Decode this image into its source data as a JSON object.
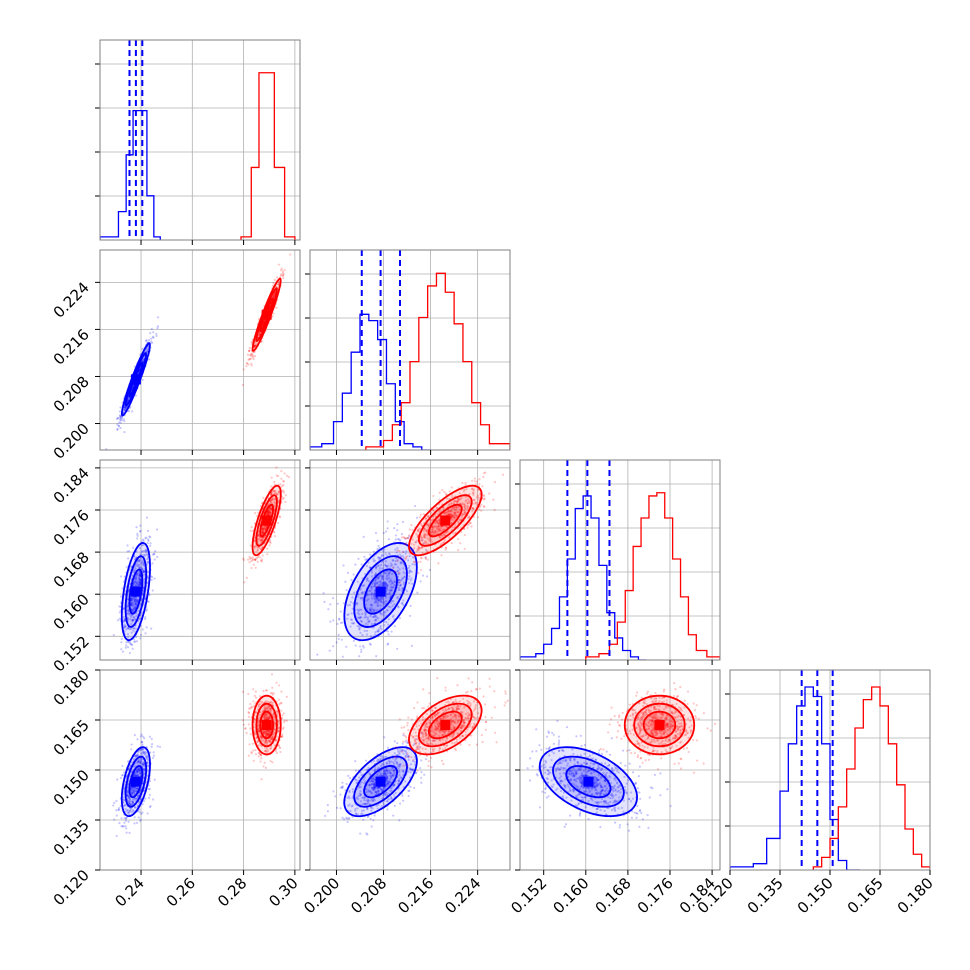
{
  "chart_data": {
    "type": "corner",
    "grid": true,
    "colors": {
      "blue": "#0000ff",
      "red": "#ff0000",
      "frame": "#808080",
      "grid": "#b0b0b0"
    },
    "parameters": [
      {
        "range": [
          0.224,
          0.302
        ],
        "ticks": [
          0.24,
          0.26,
          0.28,
          0.3
        ],
        "tick_labels": [
          "0.24",
          "0.26",
          "0.28",
          "0.30"
        ]
      },
      {
        "range": [
          0.1955,
          0.2295
        ],
        "ticks": [
          0.2,
          0.208,
          0.216,
          0.224
        ],
        "tick_labels": [
          "0.200",
          "0.208",
          "0.216",
          "0.224"
        ]
      },
      {
        "range": [
          0.1475,
          0.1855
        ],
        "ticks": [
          0.152,
          0.16,
          0.168,
          0.176,
          0.184
        ],
        "tick_labels": [
          "0.152",
          "0.160",
          "0.168",
          "0.176",
          "0.184"
        ]
      },
      {
        "range": [
          0.12,
          0.18
        ],
        "ticks": [
          0.12,
          0.135,
          0.15,
          0.165,
          0.18
        ],
        "tick_labels": [
          "0.120",
          "0.135",
          "0.150",
          "0.165",
          "0.180"
        ]
      }
    ],
    "series": [
      {
        "color": "#0000ff",
        "mean": [
          0.238,
          0.2075,
          0.1605,
          0.1465
        ],
        "sd": [
          0.0025,
          0.0028,
          0.0042,
          0.0047
        ],
        "corr": [
          [
            1,
            0.95,
            0.5,
            0.5
          ],
          [
            0.95,
            1,
            0.5,
            0.6
          ],
          [
            0.5,
            0.5,
            1,
            -0.45
          ],
          [
            0.5,
            0.6,
            -0.45,
            1
          ]
        ],
        "quantile_lines": [
          [
            0.2355,
            0.238,
            0.2405
          ],
          [
            0.2043,
            0.2075,
            0.2108
          ],
          [
            0.1565,
            0.1603,
            0.1645
          ],
          [
            0.1415,
            0.1462,
            0.1508
          ]
        ],
        "hist_bins": [
          [
            0.224,
            0.2312,
            0.2342,
            0.2369,
            0.2396,
            0.2423,
            0.245,
            0.2475
          ],
          [
            0.1955,
            0.1975,
            0.1995,
            0.201,
            0.2025,
            0.204,
            0.2055,
            0.207,
            0.2085,
            0.21,
            0.2115,
            0.213,
            0.2145,
            0.216
          ],
          [
            0.1475,
            0.1505,
            0.152,
            0.1535,
            0.155,
            0.1565,
            0.158,
            0.1595,
            0.161,
            0.1625,
            0.164,
            0.1655,
            0.167,
            0.1685,
            0.17,
            0.1715
          ],
          [
            0.12,
            0.127,
            0.131,
            0.135,
            0.1375,
            0.14,
            0.1425,
            0.145,
            0.1475,
            0.15,
            0.1525,
            0.155,
            0.159
          ]
        ],
        "hist_counts": [
          [
            1,
            9,
            27,
            41,
            41,
            14,
            1
          ],
          [
            1,
            2,
            9,
            18,
            31,
            43,
            41,
            35,
            21,
            9,
            2,
            1,
            0
          ],
          [
            1,
            2,
            5,
            10,
            20,
            32,
            48,
            52,
            45,
            30,
            15,
            7,
            3,
            1,
            0
          ],
          [
            1,
            2,
            10,
            25,
            40,
            52,
            58,
            55,
            40,
            16,
            3,
            0
          ]
        ]
      },
      {
        "color": "#ff0000",
        "mean": [
          0.289,
          0.2185,
          0.174,
          0.1635
        ],
        "sd": [
          0.0025,
          0.0028,
          0.003,
          0.004
        ],
        "corr": [
          [
            1,
            0.95,
            0.75,
            0
          ],
          [
            0.95,
            1,
            0.75,
            0.5
          ],
          [
            0.75,
            0.75,
            1,
            0
          ],
          [
            0,
            0.5,
            0,
            1
          ]
        ],
        "hist_bins": [
          [
            0.279,
            0.283,
            0.286,
            0.289,
            0.292,
            0.296,
            0.3
          ],
          [
            0.205,
            0.208,
            0.2095,
            0.211,
            0.2125,
            0.214,
            0.2155,
            0.217,
            0.2185,
            0.22,
            0.2215,
            0.223,
            0.2245,
            0.226,
            0.2295
          ],
          [
            0.16,
            0.1625,
            0.1645,
            0.166,
            0.1675,
            0.169,
            0.1705,
            0.172,
            0.1735,
            0.175,
            0.1765,
            0.178,
            0.1795,
            0.181,
            0.183,
            0.1855
          ],
          [
            0.145,
            0.1475,
            0.15,
            0.1525,
            0.155,
            0.1575,
            0.16,
            0.1625,
            0.165,
            0.1675,
            0.17,
            0.1725,
            0.175,
            0.1775,
            0.18
          ]
        ],
        "hist_counts": [
          [
            1,
            23,
            53,
            53,
            23,
            1
          ],
          [
            1,
            3,
            8,
            15,
            28,
            42,
            52,
            56,
            50,
            40,
            28,
            15,
            8,
            2
          ],
          [
            1,
            2,
            5,
            12,
            22,
            36,
            45,
            52,
            53,
            45,
            32,
            20,
            8,
            3,
            1
          ],
          [
            1,
            4,
            10,
            20,
            32,
            45,
            54,
            58,
            52,
            40,
            27,
            13,
            5,
            1
          ]
        ]
      }
    ]
  }
}
